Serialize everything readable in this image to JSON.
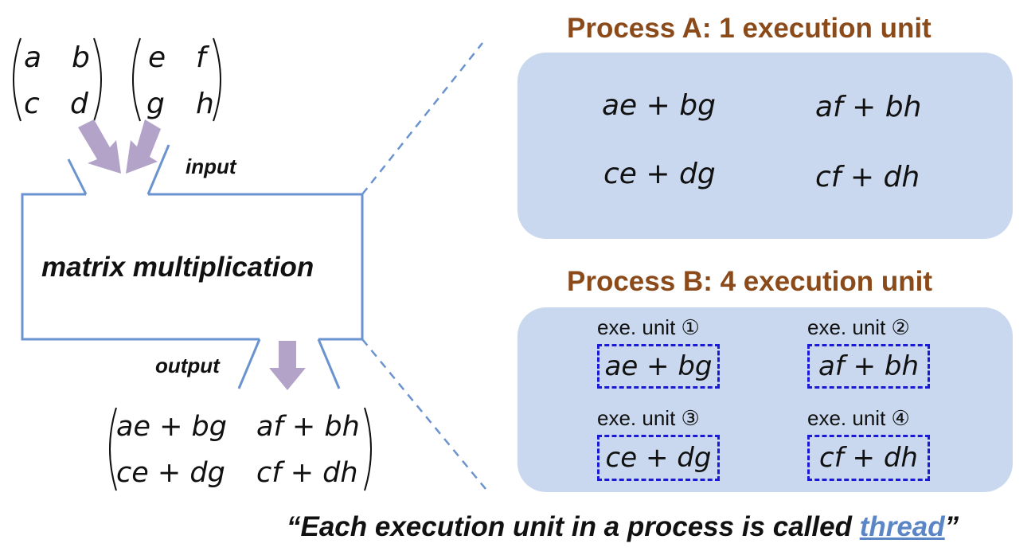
{
  "input_matrices": {
    "left": [
      "a",
      "b",
      "c",
      "d"
    ],
    "right": [
      "e",
      "f",
      "g",
      "h"
    ]
  },
  "box": {
    "label": "matrix multiplication",
    "input_label": "input",
    "output_label": "output"
  },
  "output_matrix": [
    "ae + bg",
    "af + bh",
    "ce + dg",
    "cf + dh"
  ],
  "process_a": {
    "title": "Process A: 1 execution unit",
    "cells": [
      "ae + bg",
      "af + bh",
      "ce + dg",
      "cf + dh"
    ]
  },
  "process_b": {
    "title": "Process B: 4 execution unit",
    "units": [
      {
        "label": "exe. unit ①",
        "expr": "ae + bg"
      },
      {
        "label": "exe. unit ②",
        "expr": "af + bh"
      },
      {
        "label": "exe. unit ③",
        "expr": "ce + dg"
      },
      {
        "label": "exe. unit ④",
        "expr": "cf + dh"
      }
    ]
  },
  "caption": {
    "prefix": "“Each execution unit in a process is called ",
    "keyword": "thread",
    "suffix": "”"
  },
  "colors": {
    "title": "#8a4a1a",
    "panel": "#c9d8ee",
    "box_stroke": "#6a93cf",
    "arrow": "#b3a3c9",
    "dash_box": "#1a1ad6",
    "keyword": "#5b86c6"
  }
}
